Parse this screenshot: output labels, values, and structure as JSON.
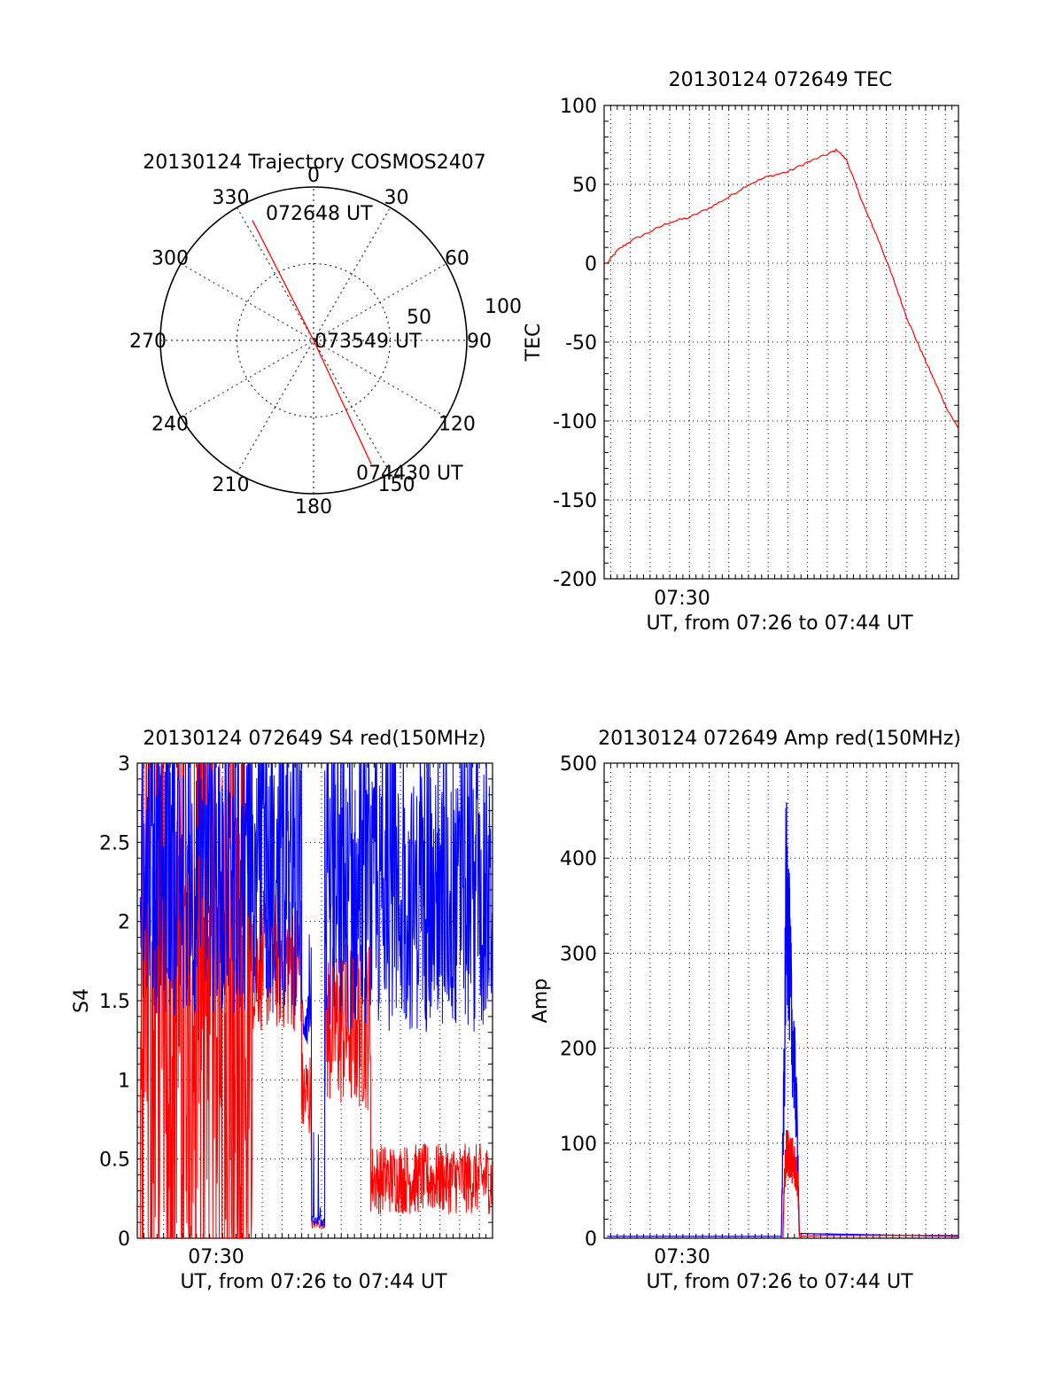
{
  "chart_data": [
    {
      "id": "trajectory",
      "type": "polar",
      "title": "20130124 Trajectory COSMOS2407",
      "azimuth_labels": [
        "0",
        "30",
        "60",
        "90",
        "120",
        "150",
        "180",
        "210",
        "240",
        "270",
        "300",
        "330"
      ],
      "radial_labels": [
        "50",
        "100"
      ],
      "track": [
        {
          "az": 333,
          "r": 88
        },
        {
          "az": 0,
          "r": 0
        },
        {
          "az": 155,
          "r": 89
        }
      ],
      "annotations": [
        "072648 UT",
        "073549 UT",
        "074430 UT"
      ],
      "line_color": "#ff0000"
    },
    {
      "id": "tec",
      "type": "line",
      "title": "20130124 072649 TEC",
      "xlabel": "UT, from 07:26 to 07:44 UT",
      "ylabel": "TEC",
      "x_tick_label": "07:30",
      "xlim": [
        "07:26:40",
        "07:44:40"
      ],
      "ylim": [
        -200,
        100
      ],
      "yticks": [
        100,
        50,
        0,
        -50,
        -100,
        -150,
        -200
      ],
      "grid": true,
      "series": [
        {
          "color": "#ff0000",
          "points": [
            [
              "07:26:49",
              0
            ],
            [
              "07:27:20",
              8
            ],
            [
              "07:28:00",
              14
            ],
            [
              "07:29:00",
              20
            ],
            [
              "07:30:00",
              26
            ],
            [
              "07:31:00",
              29
            ],
            [
              "07:32:00",
              35
            ],
            [
              "07:33:00",
              42
            ],
            [
              "07:34:00",
              50
            ],
            [
              "07:35:00",
              55
            ],
            [
              "07:36:00",
              58
            ],
            [
              "07:37:00",
              64
            ],
            [
              "07:38:00",
              69
            ],
            [
              "07:38:30",
              72
            ],
            [
              "07:39:00",
              65
            ],
            [
              "07:39:30",
              48
            ],
            [
              "07:40:00",
              32
            ],
            [
              "07:40:30",
              18
            ],
            [
              "07:41:00",
              2
            ],
            [
              "07:41:30",
              -15
            ],
            [
              "07:42:00",
              -33
            ],
            [
              "07:42:30",
              -48
            ],
            [
              "07:43:00",
              -62
            ],
            [
              "07:43:30",
              -76
            ],
            [
              "07:44:00",
              -90
            ],
            [
              "07:44:40",
              -105
            ]
          ]
        }
      ]
    },
    {
      "id": "s4",
      "type": "line",
      "title": "20130124 072649 S4 red(150MHz)",
      "xlabel": "UT, from 07:26 to 07:44 UT",
      "ylabel": "S4",
      "x_tick_label": "07:30",
      "xlim": [
        "07:26:40",
        "07:44:40"
      ],
      "ylim": [
        0,
        3
      ],
      "yticks": [
        3,
        2.5,
        2,
        1.5,
        1,
        0.5,
        0
      ],
      "grid": true,
      "series": [
        {
          "color": "#ff0000",
          "description_bands": [
            {
              "from": "07:26:49",
              "to": "07:32:30",
              "min": 0.0,
              "max": 3.0
            },
            {
              "from": "07:32:30",
              "to": "07:35:00",
              "min": 1.3,
              "max": 2.2
            },
            {
              "from": "07:35:00",
              "to": "07:35:30",
              "min": 0.6,
              "max": 1.2
            },
            {
              "from": "07:35:30",
              "to": "07:36:10",
              "min": 0.06,
              "max": 0.12
            },
            {
              "from": "07:36:10",
              "to": "07:38:30",
              "min": 0.8,
              "max": 1.9
            },
            {
              "from": "07:38:30",
              "to": "07:44:40",
              "min": 0.15,
              "max": 0.6
            }
          ]
        },
        {
          "color": "#0000ff",
          "description_bands": [
            {
              "from": "07:26:49",
              "to": "07:35:00",
              "min": 1.4,
              "max": 3.0
            },
            {
              "from": "07:35:00",
              "to": "07:35:30",
              "min": 1.2,
              "max": 1.6
            },
            {
              "from": "07:35:30",
              "to": "07:36:10",
              "min": 0.07,
              "max": 0.14
            },
            {
              "from": "07:36:10",
              "to": "07:44:40",
              "min": 1.3,
              "max": 2.9
            }
          ]
        }
      ]
    },
    {
      "id": "amp",
      "type": "line",
      "title": "20130124 072649 Amp red(150MHz)",
      "xlabel": "UT, from 07:26 to 07:44 UT",
      "ylabel": "Amp",
      "x_tick_label": "07:30",
      "xlim": [
        "07:26:40",
        "07:44:40"
      ],
      "ylim": [
        0,
        500
      ],
      "yticks": [
        500,
        400,
        300,
        200,
        100,
        0
      ],
      "grid": true,
      "series": [
        {
          "color": "#0000ff",
          "points": [
            [
              "07:26:49",
              2
            ],
            [
              "07:35:40",
              2
            ],
            [
              "07:35:50",
              240
            ],
            [
              "07:35:55",
              480
            ],
            [
              "07:36:00",
              430
            ],
            [
              "07:36:05",
              360
            ],
            [
              "07:36:10",
              300
            ],
            [
              "07:36:15",
              260
            ],
            [
              "07:36:20",
              220
            ],
            [
              "07:36:25",
              180
            ],
            [
              "07:36:30",
              120
            ],
            [
              "07:36:35",
              5
            ],
            [
              "07:44:40",
              2
            ]
          ]
        },
        {
          "color": "#ff0000",
          "points": [
            [
              "07:35:45",
              0
            ],
            [
              "07:35:50",
              80
            ],
            [
              "07:35:55",
              110
            ],
            [
              "07:36:00",
              115
            ],
            [
              "07:36:10",
              105
            ],
            [
              "07:36:20",
              95
            ],
            [
              "07:36:30",
              75
            ],
            [
              "07:36:35",
              2
            ],
            [
              "07:38:00",
              3
            ],
            [
              "07:44:40",
              3
            ]
          ]
        }
      ]
    }
  ]
}
